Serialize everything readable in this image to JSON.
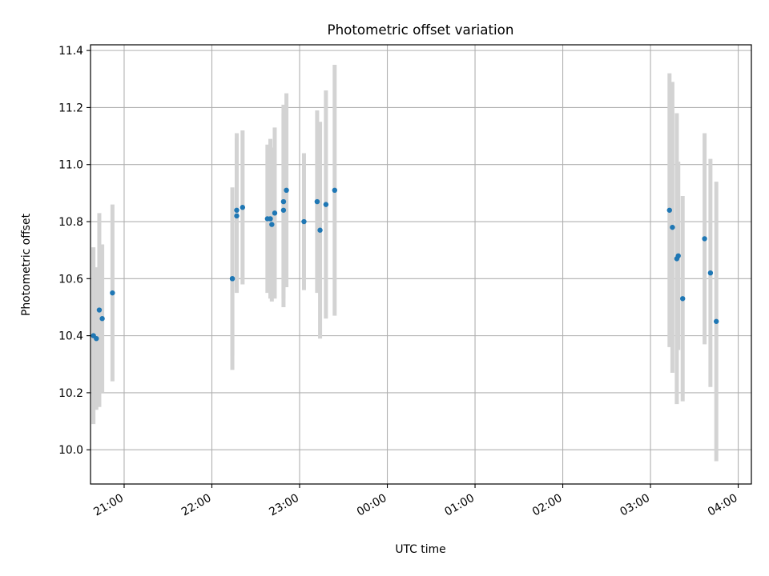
{
  "chart_data": {
    "type": "scatter",
    "title": "Photometric offset variation",
    "xlabel": "UTC time",
    "ylabel": "Photometric offset",
    "x_ticks": [
      "21:00",
      "22:00",
      "23:00",
      "00:00",
      "01:00",
      "02:00",
      "03:00",
      "04:00"
    ],
    "y_ticks": [
      "10.0",
      "10.2",
      "10.4",
      "10.6",
      "10.8",
      "11.0",
      "11.2",
      "11.4"
    ],
    "xlim": [
      "20:37",
      "04:09"
    ],
    "ylim": [
      9.88,
      11.42
    ],
    "grid": true,
    "colors": {
      "points": "#1f77b4",
      "errorbars": "#d3d3d3",
      "grid": "#b0b0b0",
      "axes": "#000000"
    },
    "series": [
      {
        "points": [
          {
            "x": "20:39",
            "y": 10.4,
            "yerr": 0.31
          },
          {
            "x": "20:41",
            "y": 10.39,
            "yerr": 0.25
          },
          {
            "x": "20:43",
            "y": 10.49,
            "yerr": 0.34
          },
          {
            "x": "20:45",
            "y": 10.46,
            "yerr": 0.26
          },
          {
            "x": "20:52",
            "y": 10.55,
            "yerr": 0.31
          },
          {
            "x": "22:14",
            "y": 10.6,
            "yerr": 0.32
          },
          {
            "x": "22:14",
            "y": 10.6,
            "yerr": 0.27
          },
          {
            "x": "22:17",
            "y": 10.84,
            "yerr": 0.27
          },
          {
            "x": "22:17",
            "y": 10.82,
            "yerr": 0.27
          },
          {
            "x": "22:21",
            "y": 10.85,
            "yerr": 0.27
          },
          {
            "x": "22:38",
            "y": 10.81,
            "yerr": 0.26
          },
          {
            "x": "22:40",
            "y": 10.81,
            "yerr": 0.28
          },
          {
            "x": "22:41",
            "y": 10.79,
            "yerr": 0.27
          },
          {
            "x": "22:43",
            "y": 10.83,
            "yerr": 0.3
          },
          {
            "x": "22:49",
            "y": 10.87,
            "yerr": 0.34
          },
          {
            "x": "22:49",
            "y": 10.84,
            "yerr": 0.34
          },
          {
            "x": "22:51",
            "y": 10.91,
            "yerr": 0.34
          },
          {
            "x": "23:03",
            "y": 10.8,
            "yerr": 0.24
          },
          {
            "x": "23:12",
            "y": 10.87,
            "yerr": 0.32
          },
          {
            "x": "23:14",
            "y": 10.77,
            "yerr": 0.38
          },
          {
            "x": "23:18",
            "y": 10.86,
            "yerr": 0.4
          },
          {
            "x": "23:24",
            "y": 10.91,
            "yerr": 0.44
          },
          {
            "x": "03:13",
            "y": 10.84,
            "yerr": 0.48
          },
          {
            "x": "03:15",
            "y": 10.78,
            "yerr": 0.51
          },
          {
            "x": "03:18",
            "y": 10.67,
            "yerr": 0.51
          },
          {
            "x": "03:19",
            "y": 10.68,
            "yerr": 0.33
          },
          {
            "x": "03:22",
            "y": 10.53,
            "yerr": 0.36
          },
          {
            "x": "03:37",
            "y": 10.74,
            "yerr": 0.37
          },
          {
            "x": "03:41",
            "y": 10.62,
            "yerr": 0.4
          },
          {
            "x": "03:45",
            "y": 10.45,
            "yerr": 0.49
          }
        ]
      }
    ]
  }
}
